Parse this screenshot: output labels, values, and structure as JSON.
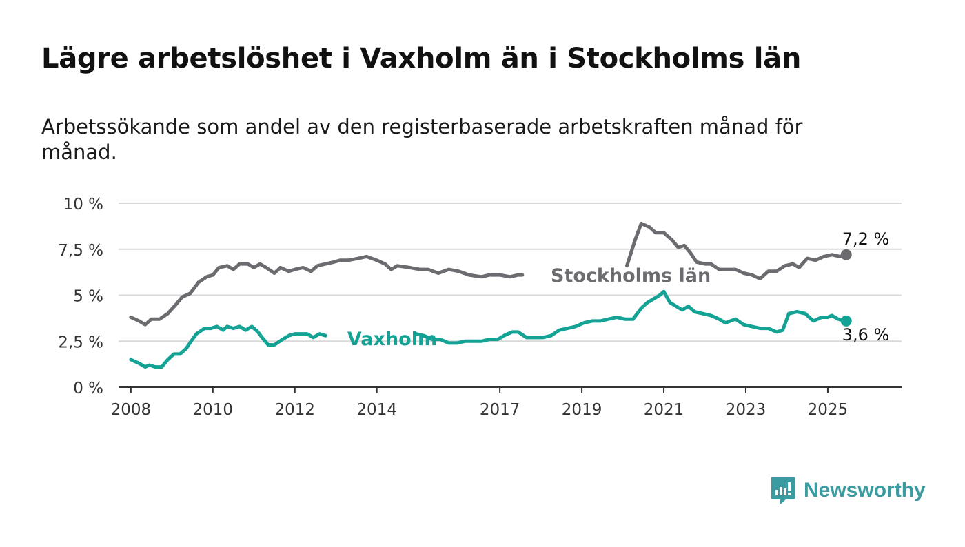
{
  "header": {
    "title": "Lägre arbetslöshet i Vaxholm än i Stockholms län",
    "subtitle": "Arbetssökande som andel av den registerbaserade arbetskraften månad för månad."
  },
  "brand": {
    "name": "Newsworthy",
    "color": "#3a9ba0"
  },
  "chart_data": {
    "type": "line",
    "title": "Lägre arbetslöshet i Vaxholm än i Stockholms län",
    "subtitle": "Arbetssökande som andel av den registerbaserade arbetskraften månad för månad.",
    "xlabel": "",
    "ylabel": "",
    "xlim": [
      2007.7,
      2026.8
    ],
    "ylim": [
      0,
      10
    ],
    "x_ticks": [
      2008,
      2010,
      2012,
      2014,
      2017,
      2019,
      2021,
      2023,
      2025
    ],
    "x_tick_labels": [
      "2008",
      "2010",
      "2012",
      "2014",
      "2017",
      "2019",
      "2021",
      "2023",
      "2025"
    ],
    "y_ticks": [
      0,
      2.5,
      5,
      7.5,
      10
    ],
    "y_tick_labels": [
      "0 %",
      "2,5 %",
      "5 %",
      "7,5 %",
      "10 %"
    ],
    "grid": true,
    "series": [
      {
        "name": "Stockholms län",
        "color": "#6b6b70",
        "end_label": "7,2 %",
        "x": [
          2008.0,
          2008.2,
          2008.35,
          2008.5,
          2008.7,
          2008.9,
          2009.1,
          2009.25,
          2009.45,
          2009.65,
          2009.85,
          2010.0,
          2010.15,
          2010.35,
          2010.5,
          2010.65,
          2010.85,
          2011.0,
          2011.15,
          2011.3,
          2011.5,
          2011.65,
          2011.85,
          2012.0,
          2012.2,
          2012.4,
          2012.55,
          2012.75,
          2012.95,
          2013.1,
          2013.3,
          2013.55,
          2013.75,
          2014.0,
          2014.2,
          2014.35,
          2014.5,
          2014.8,
          2015.05,
          2015.25,
          2015.5,
          2015.75,
          2016.0,
          2016.25,
          2016.55,
          2016.75,
          2017.0,
          2017.25,
          2017.45,
          2017.55,
          2020.1,
          2020.3,
          2020.45,
          2020.65,
          2020.8,
          2021.0,
          2021.2,
          2021.35,
          2021.5,
          2021.65,
          2021.8,
          2022.0,
          2022.15,
          2022.35,
          2022.55,
          2022.75,
          2022.95,
          2023.15,
          2023.35,
          2023.55,
          2023.75,
          2023.95,
          2024.15,
          2024.3,
          2024.5,
          2024.7,
          2024.9,
          2025.1,
          2025.3,
          2025.45
        ],
        "y": [
          3.8,
          3.6,
          3.4,
          3.7,
          3.7,
          4.0,
          4.5,
          4.9,
          5.1,
          5.7,
          6.0,
          6.1,
          6.5,
          6.6,
          6.4,
          6.7,
          6.7,
          6.5,
          6.7,
          6.5,
          6.2,
          6.5,
          6.3,
          6.4,
          6.5,
          6.3,
          6.6,
          6.7,
          6.8,
          6.9,
          6.9,
          7.0,
          7.1,
          6.9,
          6.7,
          6.4,
          6.6,
          6.5,
          6.4,
          6.4,
          6.2,
          6.4,
          6.3,
          6.1,
          6.0,
          6.1,
          6.1,
          6.0,
          6.1,
          6.1,
          6.6,
          8.0,
          8.9,
          8.7,
          8.4,
          8.4,
          8.0,
          7.6,
          7.7,
          7.3,
          6.8,
          6.7,
          6.7,
          6.4,
          6.4,
          6.4,
          6.2,
          6.1,
          5.9,
          6.3,
          6.3,
          6.6,
          6.7,
          6.5,
          7.0,
          6.9,
          7.1,
          7.2,
          7.1,
          7.2
        ]
      },
      {
        "name": "Vaxholm",
        "color": "#14a295",
        "end_label": "3,6 %",
        "x": [
          2008.0,
          2008.2,
          2008.35,
          2008.45,
          2008.6,
          2008.75,
          2008.9,
          2009.05,
          2009.2,
          2009.35,
          2009.5,
          2009.6,
          2009.8,
          2009.95,
          2010.1,
          2010.25,
          2010.35,
          2010.5,
          2010.65,
          2010.8,
          2010.95,
          2011.1,
          2011.2,
          2011.35,
          2011.5,
          2011.7,
          2011.85,
          2012.0,
          2012.15,
          2012.3,
          2012.45,
          2012.6,
          2012.75,
          2014.95,
          2015.15,
          2015.35,
          2015.55,
          2015.75,
          2015.95,
          2016.15,
          2016.35,
          2016.55,
          2016.75,
          2016.95,
          2017.1,
          2017.3,
          2017.45,
          2017.65,
          2017.85,
          2018.05,
          2018.25,
          2018.45,
          2018.65,
          2018.85,
          2019.05,
          2019.25,
          2019.45,
          2019.65,
          2019.85,
          2020.05,
          2020.25,
          2020.45,
          2020.6,
          2020.75,
          2020.9,
          2021.0,
          2021.15,
          2021.3,
          2021.45,
          2021.6,
          2021.75,
          2021.95,
          2022.15,
          2022.35,
          2022.5,
          2022.75,
          2022.95,
          2023.15,
          2023.35,
          2023.55,
          2023.75,
          2023.9,
          2024.05,
          2024.25,
          2024.45,
          2024.65,
          2024.85,
          2025.0,
          2025.1,
          2025.25,
          2025.45
        ],
        "y": [
          1.5,
          1.3,
          1.1,
          1.2,
          1.1,
          1.1,
          1.5,
          1.8,
          1.8,
          2.1,
          2.6,
          2.9,
          3.2,
          3.2,
          3.3,
          3.1,
          3.3,
          3.2,
          3.3,
          3.1,
          3.3,
          3.0,
          2.7,
          2.3,
          2.3,
          2.6,
          2.8,
          2.9,
          2.9,
          2.9,
          2.7,
          2.9,
          2.8,
          2.9,
          2.8,
          2.6,
          2.6,
          2.4,
          2.4,
          2.5,
          2.5,
          2.5,
          2.6,
          2.6,
          2.8,
          3.0,
          3.0,
          2.7,
          2.7,
          2.7,
          2.8,
          3.1,
          3.2,
          3.3,
          3.5,
          3.6,
          3.6,
          3.7,
          3.8,
          3.7,
          3.7,
          4.3,
          4.6,
          4.8,
          5.0,
          5.2,
          4.6,
          4.4,
          4.2,
          4.4,
          4.1,
          4.0,
          3.9,
          3.7,
          3.5,
          3.7,
          3.4,
          3.3,
          3.2,
          3.2,
          3.0,
          3.1,
          4.0,
          4.1,
          4.0,
          3.6,
          3.8,
          3.8,
          3.9,
          3.7,
          3.6
        ]
      }
    ]
  }
}
